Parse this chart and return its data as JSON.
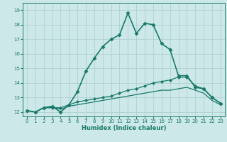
{
  "xlabel": "Humidex (Indice chaleur)",
  "bg_color": "#cce8e8",
  "grid_color": "#aacccc",
  "line_color": "#1a7a6a",
  "xlim": [
    -0.5,
    23.5
  ],
  "ylim": [
    11.7,
    19.5
  ],
  "yticks": [
    12,
    13,
    14,
    15,
    16,
    17,
    18,
    19
  ],
  "xticks": [
    0,
    1,
    2,
    3,
    4,
    5,
    6,
    7,
    8,
    9,
    10,
    11,
    12,
    13,
    14,
    15,
    16,
    17,
    18,
    19,
    20,
    21,
    22,
    23
  ],
  "series": [
    {
      "x": [
        0,
        1,
        2,
        3,
        4,
        5,
        6,
        7,
        8,
        9,
        10,
        11,
        12,
        13,
        14,
        15,
        16,
        17,
        18,
        19,
        20,
        21,
        22,
        23
      ],
      "y": [
        12.1,
        12.0,
        12.3,
        12.4,
        12.0,
        12.5,
        13.4,
        14.8,
        15.7,
        16.5,
        17.0,
        17.3,
        18.8,
        17.4,
        18.1,
        18.0,
        16.7,
        16.3,
        14.5,
        14.5,
        13.7,
        13.6,
        13.0,
        12.6
      ],
      "marker": "D",
      "markersize": 2.5,
      "linewidth": 1.2,
      "linestyle": "-"
    },
    {
      "x": [
        0,
        1,
        2,
        3,
        4,
        5,
        6,
        7,
        8,
        9,
        10,
        11,
        12,
        13,
        14,
        15,
        16,
        17,
        18,
        19,
        20,
        21,
        22,
        23
      ],
      "y": [
        12.1,
        12.0,
        12.3,
        12.3,
        12.3,
        12.5,
        12.7,
        12.8,
        12.9,
        13.0,
        13.1,
        13.3,
        13.5,
        13.6,
        13.8,
        14.0,
        14.1,
        14.2,
        14.4,
        14.4,
        13.8,
        13.6,
        13.0,
        12.6
      ],
      "marker": "D",
      "markersize": 2.0,
      "linewidth": 0.9,
      "linestyle": "-"
    },
    {
      "x": [
        0,
        1,
        2,
        3,
        4,
        5,
        6,
        7,
        8,
        9,
        10,
        11,
        12,
        13,
        14,
        15,
        16,
        17,
        18,
        19,
        20,
        21,
        22,
        23
      ],
      "y": [
        12.1,
        12.0,
        12.3,
        12.3,
        12.2,
        12.4,
        12.5,
        12.6,
        12.7,
        12.8,
        12.9,
        13.0,
        13.1,
        13.2,
        13.3,
        13.4,
        13.5,
        13.5,
        13.6,
        13.7,
        13.5,
        13.3,
        12.8,
        12.5
      ],
      "marker": null,
      "markersize": 0,
      "linewidth": 0.9,
      "linestyle": "-"
    }
  ]
}
